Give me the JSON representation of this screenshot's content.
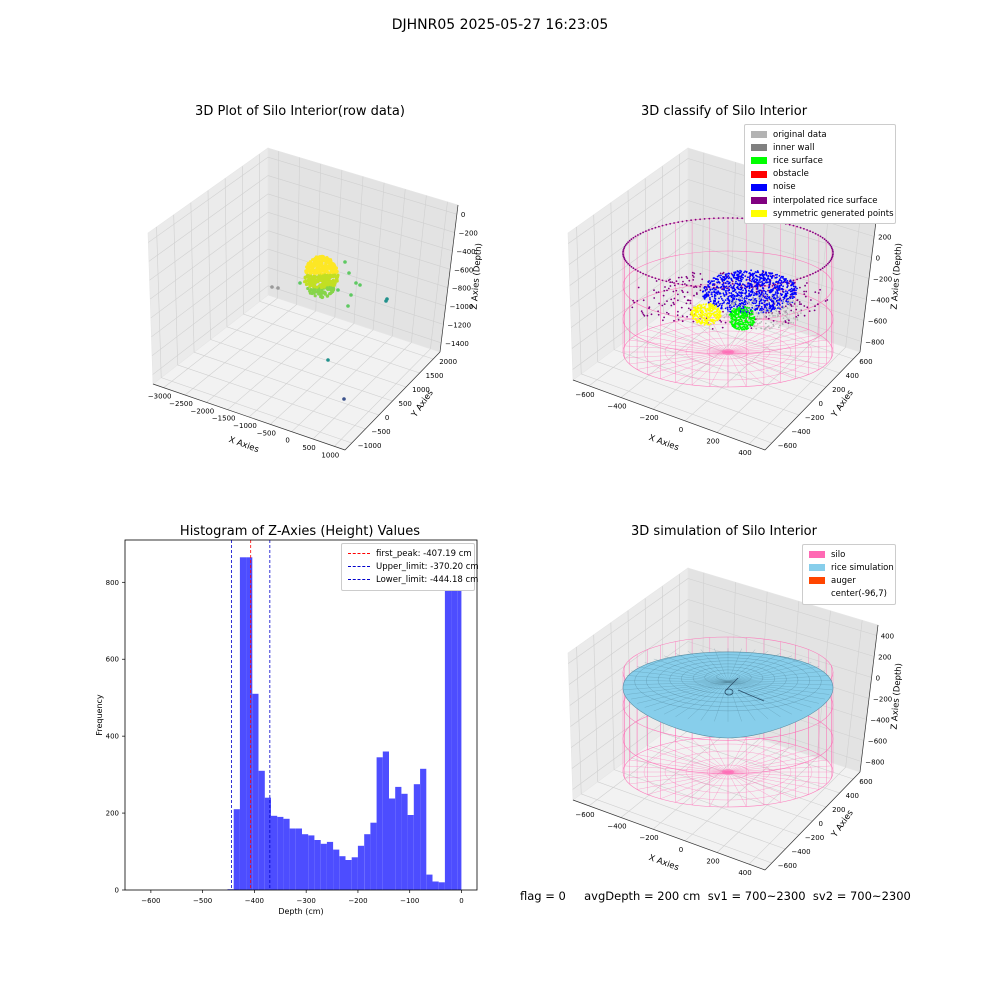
{
  "suptitle": "DJHNR05 2025-05-27 16:23:05",
  "footer": "flag = 0     avgDepth = 200 cm  sv1 = 700~2300  sv2 = 700~2300",
  "colors": {
    "histogram_bar": "#4d4dff",
    "first_peak_line": "#ff0000",
    "limit_line": "#0000cc",
    "silo_wireframe": "#ff69b4",
    "rice_simulation": "#87ceeb"
  },
  "chart_data": [
    {
      "type": "scatter",
      "title": "3D Plot of Silo Interior(row data)",
      "projection": "3d",
      "xlabel": "X Axies",
      "ylabel": "Y Axies",
      "zlabel": "Z Axies (Depth)",
      "xticks": [
        "−3000",
        "−2500",
        "−2000",
        "−1500",
        "−1000",
        "−500",
        "0",
        "500",
        "1000"
      ],
      "yticks": [
        "−1000",
        "−500",
        "0",
        "500",
        "1000",
        "1500",
        "2000"
      ],
      "zticks": [
        "0",
        "−200",
        "−400",
        "−600",
        "−800",
        "−1000",
        "−1200",
        "−1400"
      ],
      "xlim": [
        -3000,
        1000
      ],
      "ylim": [
        -1000,
        2000
      ],
      "zlim": [
        -1400,
        0
      ],
      "colormap": "viridis"
    },
    {
      "type": "scatter",
      "title": "3D classify of Silo Interior",
      "projection": "3d",
      "xlabel": "X Axies",
      "ylabel": "Y Axies",
      "zlabel": "Z Axies (Depth)",
      "xticks": [
        "−600",
        "−400",
        "−200",
        "0",
        "200",
        "400"
      ],
      "yticks": [
        "−600",
        "−400",
        "−200",
        "0",
        "200",
        "400",
        "600"
      ],
      "zticks": [
        "400",
        "200",
        "0",
        "−200",
        "−400",
        "−600",
        "−800"
      ],
      "xlim": [
        -600,
        400
      ],
      "ylim": [
        -600,
        600
      ],
      "zlim": [
        -800,
        400
      ],
      "legend": [
        {
          "label": "original data",
          "color": "#b3b3b3"
        },
        {
          "label": "inner wall",
          "color": "#808080"
        },
        {
          "label": "rice surface",
          "color": "#00ff00"
        },
        {
          "label": "obstacle",
          "color": "#ff0000"
        },
        {
          "label": "noise",
          "color": "#0000ff"
        },
        {
          "label": "interpolated rice surface",
          "color": "#800080"
        },
        {
          "label": "symmetric generated points",
          "color": "#ffff00"
        }
      ],
      "legend_loc": "top-right"
    },
    {
      "type": "bar",
      "title": "Histogram of Z-Axies (Height) Values",
      "xlabel": "Depth (cm)",
      "ylabel": "Frequency",
      "xlim": [
        -650,
        30
      ],
      "ylim": [
        0,
        910
      ],
      "xticks": [
        -600,
        -500,
        -400,
        -300,
        -200,
        -100,
        0
      ],
      "yticks": [
        0,
        200,
        400,
        600,
        800
      ],
      "bin_edges": [
        -452,
        -440,
        -428,
        -416,
        -404,
        -392,
        -380,
        -368,
        -356,
        -344,
        -332,
        -320,
        -308,
        -296,
        -284,
        -272,
        -260,
        -248,
        -236,
        -224,
        -212,
        -200,
        -188,
        -176,
        -164,
        -152,
        -140,
        -128,
        -116,
        -104,
        -92,
        -80,
        -68,
        -56,
        -44,
        -32,
        -20,
        -8,
        0
      ],
      "values": [
        2,
        210,
        865,
        865,
        510,
        310,
        240,
        193,
        190,
        185,
        160,
        160,
        145,
        142,
        130,
        120,
        125,
        105,
        88,
        78,
        85,
        115,
        145,
        175,
        345,
        360,
        238,
        268,
        250,
        195,
        275,
        315,
        40,
        22,
        20,
        815,
        815,
        815
      ],
      "lines": [
        {
          "label": "first_peak: -407.19 cm",
          "x": -407.19,
          "color": "#ff0000"
        },
        {
          "label": "Upper_limit: -370.20 cm",
          "x": -370.2,
          "color": "#0000cc"
        },
        {
          "label": "Lower_limit: -444.18 cm",
          "x": -444.18,
          "color": "#0000cc"
        }
      ],
      "legend_loc": "top-right"
    },
    {
      "type": "surface",
      "title": "3D simulation of Silo Interior",
      "projection": "3d",
      "xlabel": "X Axies",
      "ylabel": "Y Axies",
      "zlabel": "Z Axies (Depth)",
      "xticks": [
        "−600",
        "−400",
        "−200",
        "0",
        "200",
        "400"
      ],
      "yticks": [
        "−600",
        "−400",
        "−200",
        "0",
        "200",
        "400",
        "600"
      ],
      "zticks": [
        "400",
        "200",
        "0",
        "−200",
        "−400",
        "−600",
        "−800"
      ],
      "xlim": [
        -600,
        400
      ],
      "ylim": [
        -600,
        600
      ],
      "zlim": [
        -800,
        400
      ],
      "legend": [
        {
          "label": "silo",
          "color": "#ff69b4"
        },
        {
          "label": "rice simulation",
          "color": "#87ceeb"
        },
        {
          "label": "auger",
          "color": "#ff4500"
        },
        {
          "label": "center(-96,7)",
          "color": ""
        }
      ],
      "legend_loc": "top-right"
    }
  ]
}
